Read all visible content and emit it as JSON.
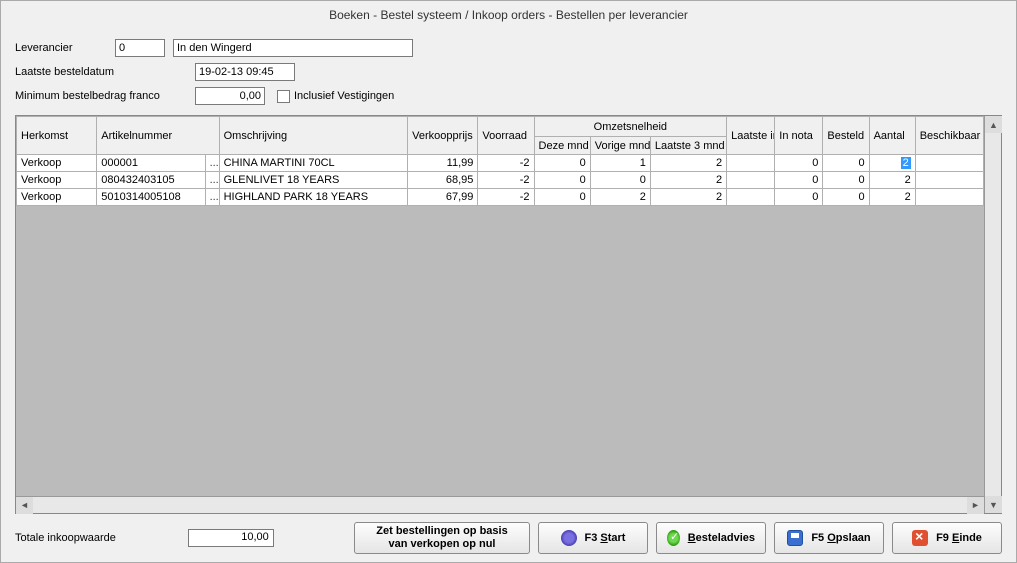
{
  "title": "Boeken - Bestel systeem / Inkoop orders - Bestellen per leverancier",
  "form": {
    "leverancier_label": "Leverancier",
    "leverancier_code": "0",
    "leverancier_name": "In den Wingerd",
    "laatste_besteldatum_label": "Laatste besteldatum",
    "laatste_besteldatum_value": "19-02-13 09:45",
    "min_bedrag_label": "Minimum bestelbedrag franco",
    "min_bedrag_value": "0,00",
    "inclusief_label": "Inclusief Vestigingen",
    "inclusief_checked": false
  },
  "columns": {
    "herkomst": "Herkomst",
    "artikelnummer": "Artikelnummer",
    "omschrijving": "Omschrijving",
    "verkoopprijs": "Verkoopprijs",
    "voorraad": "Voorraad",
    "omzetsnelheid": "Omzetsnelheid",
    "deze_mnd": "Deze mnd",
    "vorige_mnd": "Vorige mnd",
    "laatste_3mnd": "Laatste 3 mnd",
    "laatste_inkoop": "Laatste inkoop",
    "in_nota": "In nota",
    "besteld": "Besteld",
    "aantal": "Aantal",
    "beschikbaar": "Beschikbaar"
  },
  "rows": [
    {
      "herkomst": "Verkoop",
      "artnr": "000001",
      "omschr": "CHINA MARTINI 70CL",
      "vk": "11,99",
      "voorraad": "-2",
      "dm": "0",
      "vm": "1",
      "l3": "2",
      "li": "",
      "nota": "0",
      "besteld": "0",
      "aantal": "2",
      "beschik": ""
    },
    {
      "herkomst": "Verkoop",
      "artnr": "080432403105",
      "omschr": "GLENLIVET 18 YEARS",
      "vk": "68,95",
      "voorraad": "-2",
      "dm": "0",
      "vm": "0",
      "l3": "2",
      "li": "",
      "nota": "0",
      "besteld": "0",
      "aantal": "2",
      "beschik": ""
    },
    {
      "herkomst": "Verkoop",
      "artnr": "5010314005108",
      "omschr": "HIGHLAND PARK 18 YEARS",
      "vk": "67,99",
      "voorraad": "-2",
      "dm": "0",
      "vm": "2",
      "l3": "2",
      "li": "",
      "nota": "0",
      "besteld": "0",
      "aantal": "2",
      "beschik": ""
    }
  ],
  "footer": {
    "totale_label": "Totale inkoopwaarde",
    "totale_value": "10,00",
    "btn_zet_line1": "Zet bestellingen op basis",
    "btn_zet_line2": "van verkopen op nul",
    "btn_start_prefix": "F3 ",
    "btn_start_u": "S",
    "btn_start_rest": "tart",
    "btn_advies_u": "B",
    "btn_advies_rest": "esteladvies",
    "btn_opslaan_prefix": "F5 ",
    "btn_opslaan_u": "O",
    "btn_opslaan_rest": "pslaan",
    "btn_einde_prefix": "F9 ",
    "btn_einde_u": "E",
    "btn_einde_rest": "inde"
  },
  "colwidths": {
    "herkomst": 80,
    "artnr": 108,
    "ell": 14,
    "omschr": 188,
    "vk": 70,
    "voorraad": 56,
    "dm": 56,
    "vm": 60,
    "l3": 76,
    "li": 48,
    "nota": 48,
    "besteld": 46,
    "aantal": 46,
    "beschik": 68
  }
}
